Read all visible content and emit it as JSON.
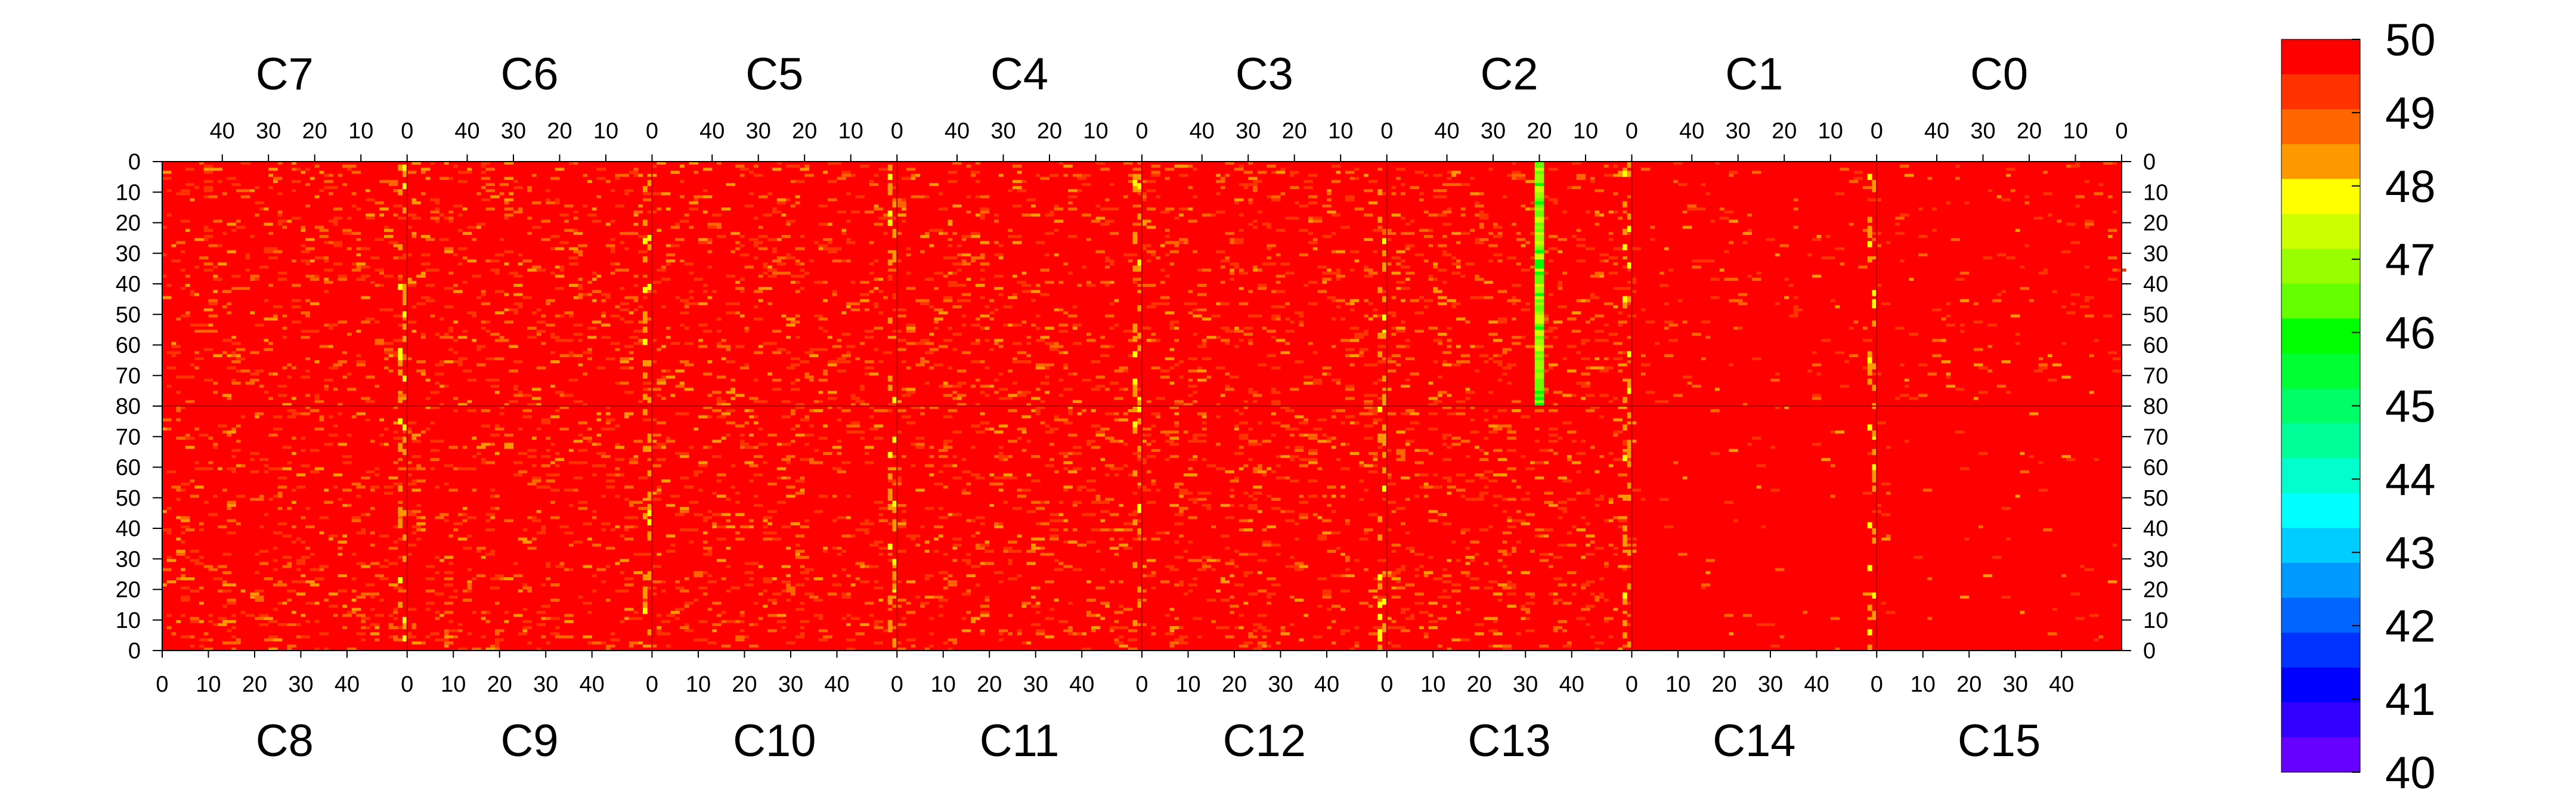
{
  "chart_data": {
    "type": "heatmap",
    "title": "",
    "colorbar": {
      "min": 40,
      "max": 50,
      "tick_labels": [
        "50",
        "49",
        "48",
        "47",
        "46",
        "45",
        "44",
        "43",
        "42",
        "41",
        "40"
      ],
      "colors": [
        "#ff0000",
        "#ff3300",
        "#ff6600",
        "#ff9900",
        "#ffff00",
        "#ccff00",
        "#99ff00",
        "#66ff00",
        "#00ff00",
        "#00ff33",
        "#00ff66",
        "#00ff99",
        "#00ffcc",
        "#00ffff",
        "#00ccff",
        "#0099ff",
        "#0066ff",
        "#0033ff",
        "#0000ff",
        "#3300ff",
        "#6600ff"
      ]
    },
    "top_chips": [
      {
        "name": "C7",
        "ticks": [
          "40",
          "30",
          "20",
          "10",
          "0"
        ]
      },
      {
        "name": "C6",
        "ticks": [
          "40",
          "30",
          "20",
          "10",
          "0"
        ]
      },
      {
        "name": "C5",
        "ticks": [
          "40",
          "30",
          "20",
          "10",
          "0"
        ]
      },
      {
        "name": "C4",
        "ticks": [
          "40",
          "30",
          "20",
          "10",
          "0"
        ]
      },
      {
        "name": "C3",
        "ticks": [
          "40",
          "30",
          "20",
          "10",
          "0"
        ]
      },
      {
        "name": "C2",
        "ticks": [
          "40",
          "30",
          "20",
          "10",
          "0"
        ]
      },
      {
        "name": "C1",
        "ticks": [
          "40",
          "30",
          "20",
          "10",
          "0"
        ]
      },
      {
        "name": "C0",
        "ticks": [
          "40",
          "30",
          "20",
          "10",
          "0"
        ]
      }
    ],
    "bottom_chips": [
      {
        "name": "C8",
        "ticks": [
          "0",
          "10",
          "20",
          "30",
          "40"
        ]
      },
      {
        "name": "C9",
        "ticks": [
          "0",
          "10",
          "20",
          "30",
          "40"
        ]
      },
      {
        "name": "C10",
        "ticks": [
          "0",
          "10",
          "20",
          "30",
          "40"
        ]
      },
      {
        "name": "C11",
        "ticks": [
          "0",
          "10",
          "20",
          "30",
          "40"
        ]
      },
      {
        "name": "C12",
        "ticks": [
          "0",
          "10",
          "20",
          "30",
          "40"
        ]
      },
      {
        "name": "C13",
        "ticks": [
          "0",
          "10",
          "20",
          "30",
          "40"
        ]
      },
      {
        "name": "C14",
        "ticks": [
          "0",
          "10",
          "20",
          "30",
          "40"
        ]
      },
      {
        "name": "C15",
        "ticks": [
          "0",
          "10",
          "20",
          "30",
          "40"
        ]
      }
    ],
    "col_ticks_top": [
      {
        "label": "40",
        "col": 40
      },
      {
        "label": "30",
        "col": 30
      },
      {
        "label": "20",
        "col": 20
      },
      {
        "label": "10",
        "col": 10
      },
      {
        "label": "0",
        "col": 0
      }
    ],
    "col_ticks_bottom": [
      {
        "label": "0",
        "col": 0
      },
      {
        "label": "10",
        "col": 10
      },
      {
        "label": "20",
        "col": 20
      },
      {
        "label": "30",
        "col": 30
      },
      {
        "label": "40",
        "col": 40
      }
    ],
    "row_ticks": [
      {
        "label": "0",
        "row": 0
      },
      {
        "label": "10",
        "row": 10
      },
      {
        "label": "20",
        "row": 20
      },
      {
        "label": "30",
        "row": 30
      },
      {
        "label": "40",
        "row": 40
      },
      {
        "label": "50",
        "row": 50
      },
      {
        "label": "60",
        "row": 60
      },
      {
        "label": "70",
        "row": 70
      },
      {
        "label": "80",
        "row": 80
      },
      {
        "label": "70",
        "row": 90
      },
      {
        "label": "60",
        "row": 100
      },
      {
        "label": "50",
        "row": 110
      },
      {
        "label": "40",
        "row": 120
      },
      {
        "label": "30",
        "row": 130
      },
      {
        "label": "20",
        "row": 140
      },
      {
        "label": "10",
        "row": 150
      },
      {
        "label": "0",
        "row": 160
      }
    ],
    "chip_columns": 53,
    "chip_rows": 80,
    "background_value": 50,
    "highlighted_column": {
      "chip": "C2",
      "column": 20,
      "value_range": [
        45,
        48
      ]
    }
  }
}
